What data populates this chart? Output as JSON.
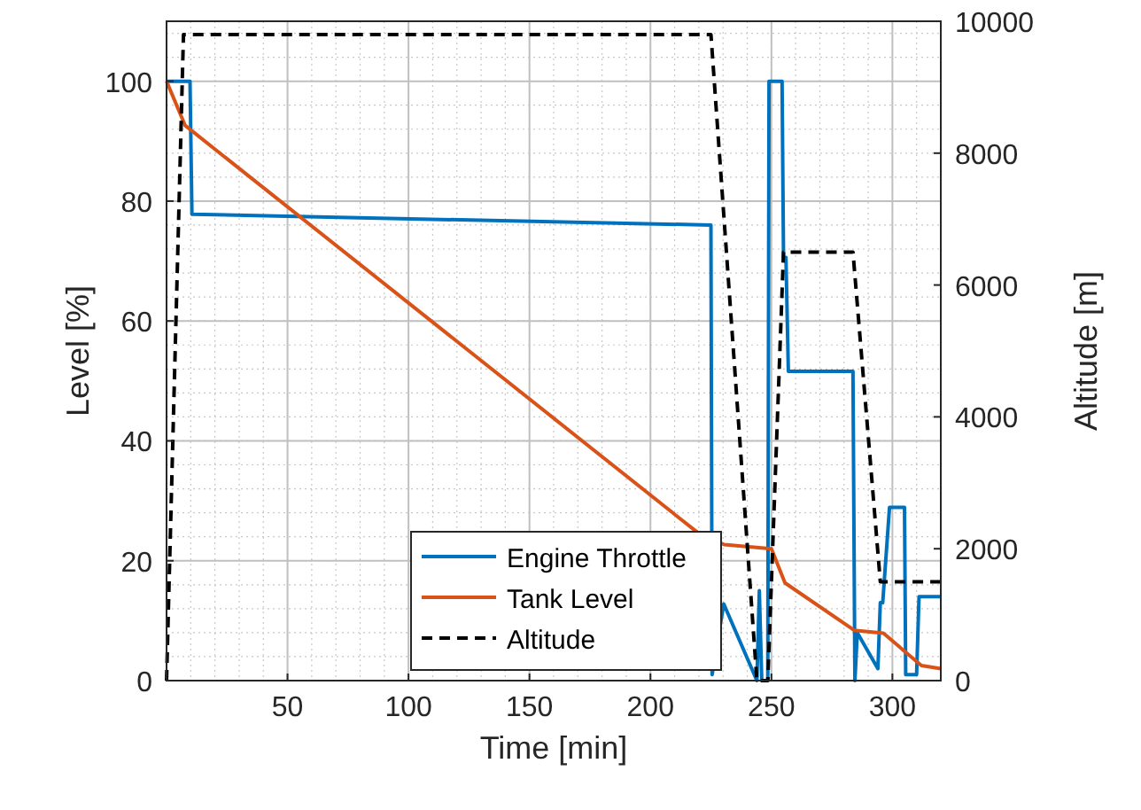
{
  "chart_data": {
    "type": "line",
    "xlabel": "Time [min]",
    "ylabel": "Level [%]",
    "y2label": "Altitude [m]",
    "xlim": [
      0,
      320
    ],
    "xticks": [
      50,
      100,
      150,
      200,
      250,
      300
    ],
    "ylim": [
      0,
      110
    ],
    "yticks": [
      0,
      20,
      40,
      60,
      80,
      100
    ],
    "y2lim": [
      0,
      10000
    ],
    "y2ticks": [
      0,
      2000,
      4000,
      6000,
      8000,
      10000
    ],
    "grid": true,
    "legend": "bottom",
    "marker": "none",
    "series": [
      {
        "name": "Engine Throttle",
        "color": "#0072bd",
        "line_style": "solid",
        "x": [
          0,
          9.7,
          10.5,
          225,
          225.5,
          230.3,
          244,
          245,
          246,
          248.5,
          249,
          254.4,
          255,
          256,
          257,
          283.7,
          284.5,
          285.5,
          294,
          295,
          296,
          298.8,
          305,
          305.5,
          310,
          311,
          320
        ],
        "values": [
          100,
          100,
          77.8,
          76,
          1,
          12.8,
          0,
          15,
          0,
          0,
          100,
          100,
          70.6,
          70.6,
          51.6,
          51.6,
          0,
          8,
          2,
          13,
          13,
          28.9,
          28.9,
          1,
          1,
          14,
          14
        ]
      },
      {
        "name": "Tank Level",
        "color": "#d95319",
        "line_style": "solid",
        "x": [
          0,
          7.7,
          219.5,
          230.5,
          250,
          255.6,
          284.2,
          296.3,
          312,
          320
        ],
        "values": [
          100,
          92.6,
          24.7,
          22.7,
          22,
          16.3,
          8.4,
          7.9,
          2.5,
          2
        ]
      },
      {
        "name": "Altitude",
        "color": "#000000",
        "line_style": "dashed",
        "axis": "y2",
        "x": [
          0,
          7,
          225,
          244,
          248.5,
          255,
          283.7,
          295,
          320
        ],
        "values": [
          0,
          9800,
          9800,
          0,
          0,
          6500,
          6500,
          1500,
          1500
        ]
      }
    ]
  }
}
